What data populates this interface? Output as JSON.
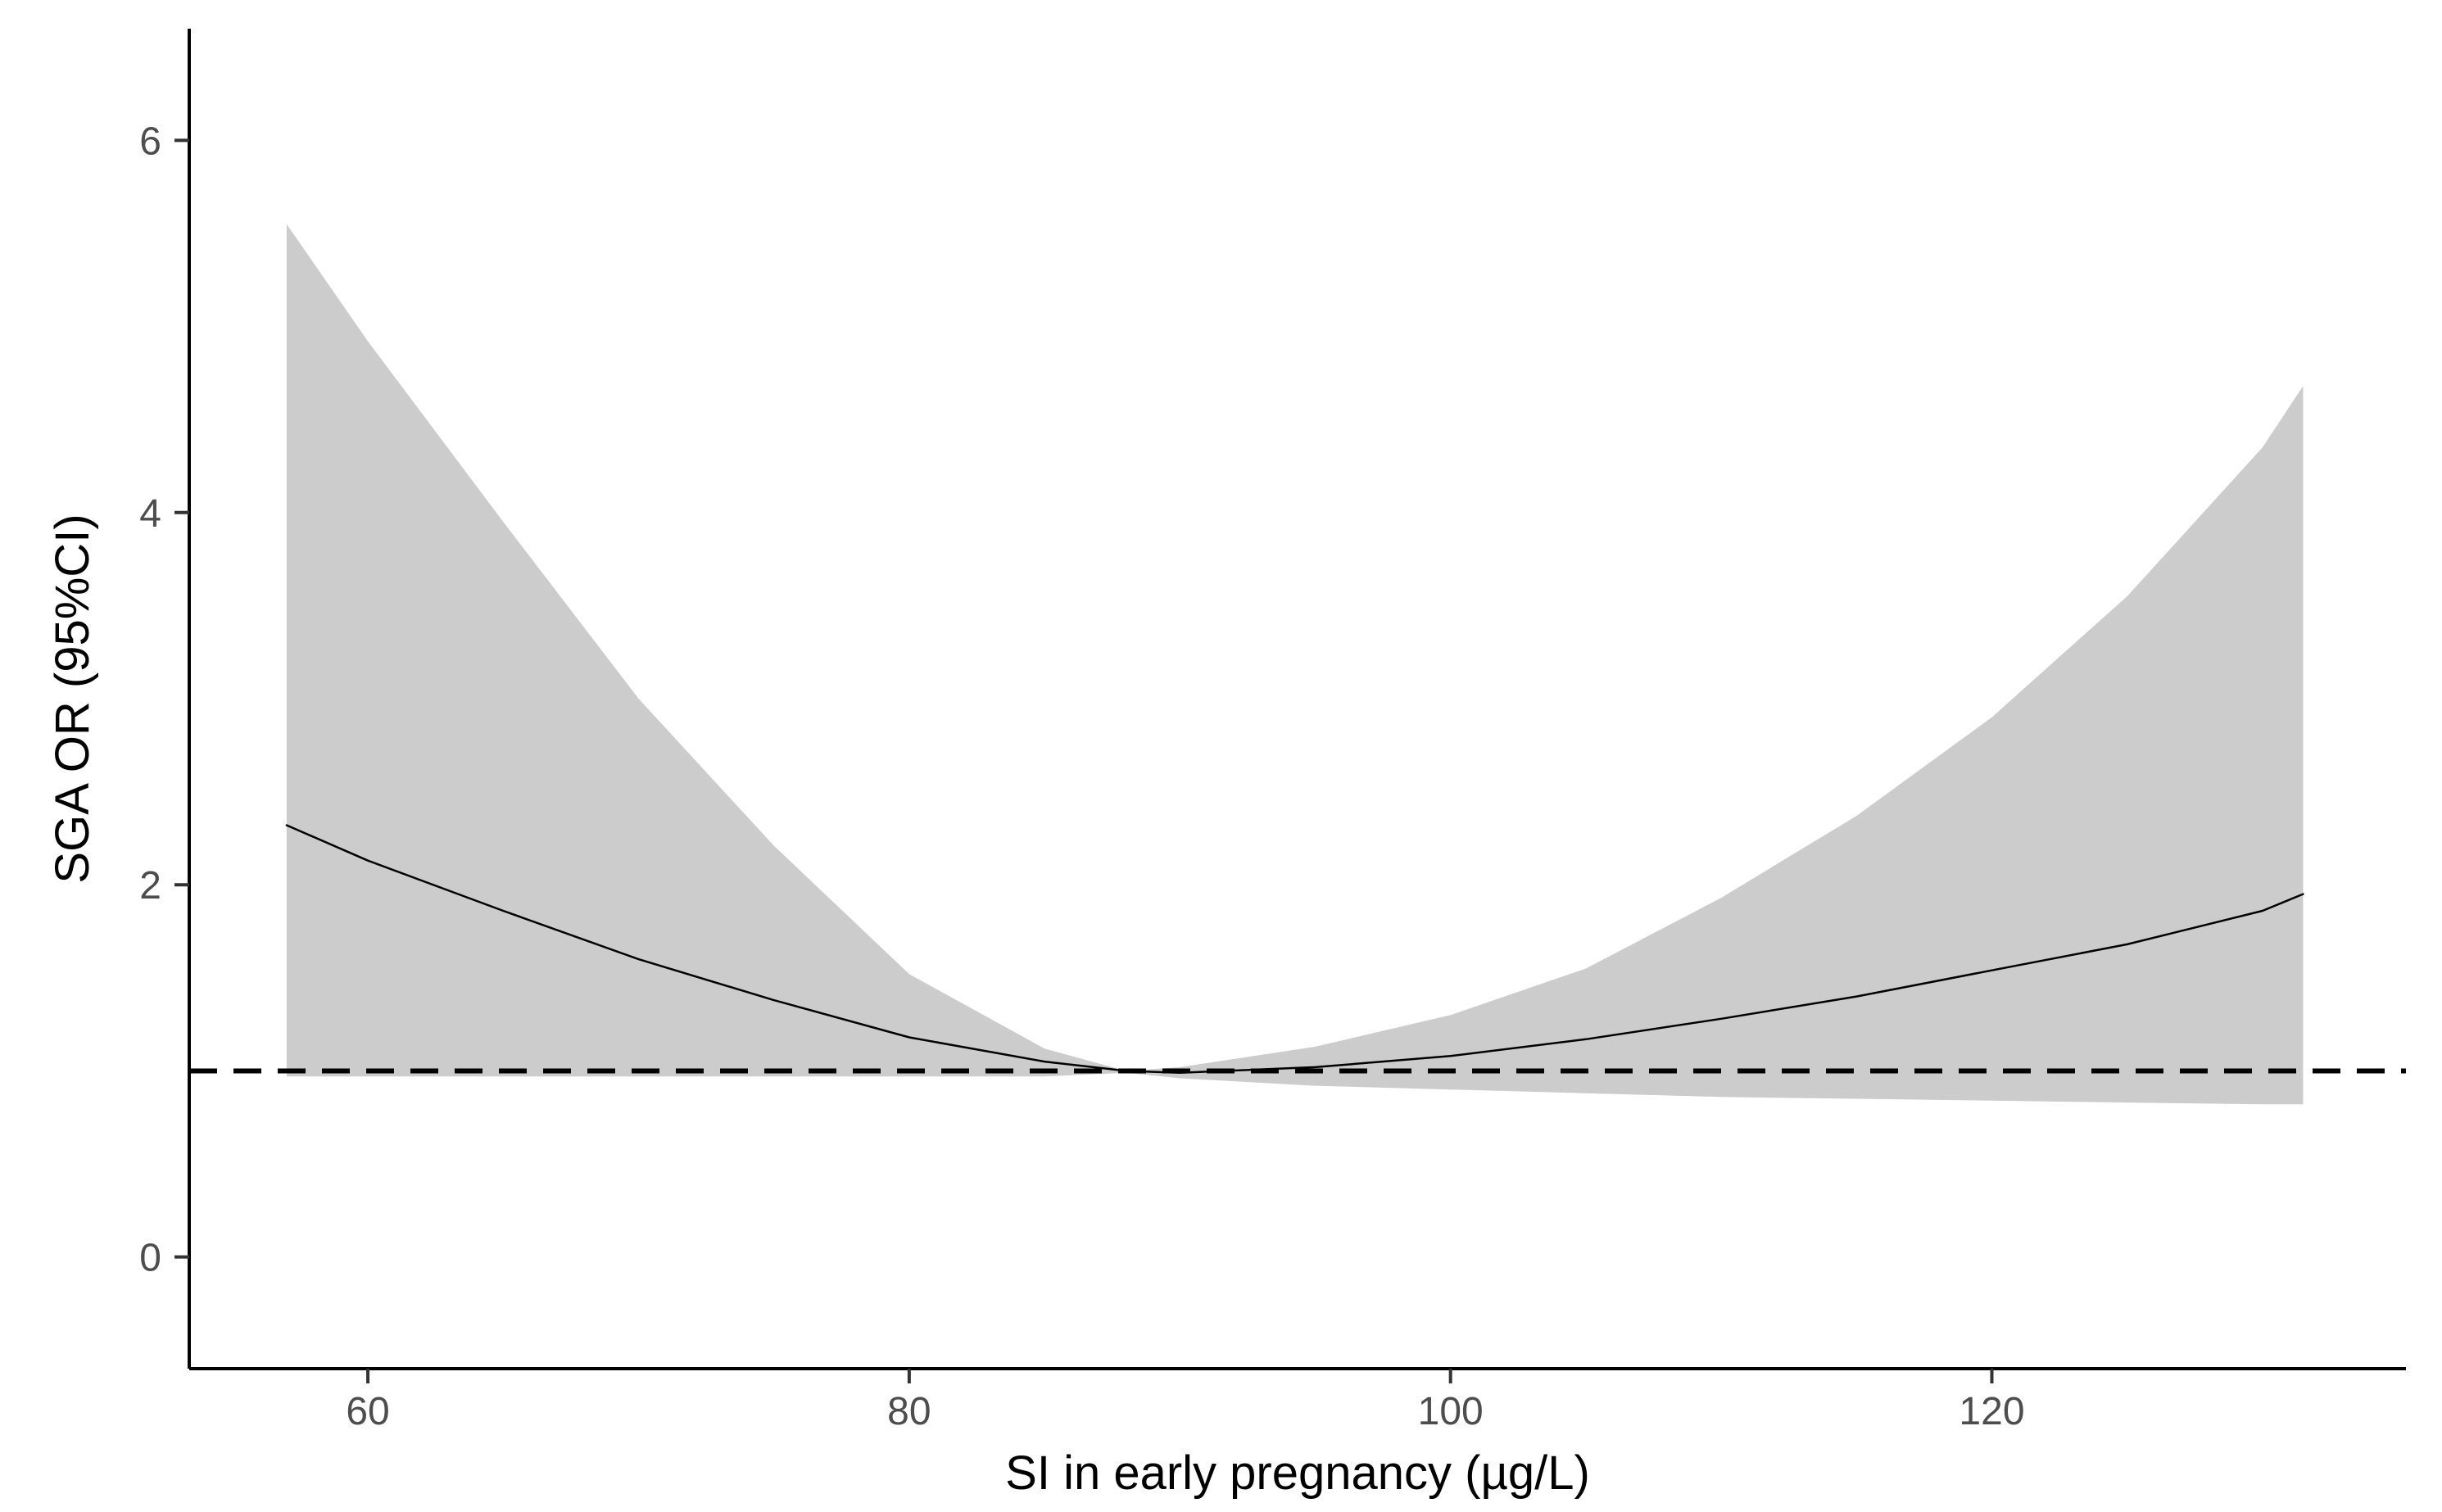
{
  "chart_data": {
    "type": "line",
    "title": "",
    "xlabel": "SI in early pregnancy (µg/L)",
    "ylabel": "SGA OR (95%CI)",
    "xlim": [
      53.4,
      135.3
    ],
    "ylim": [
      -0.6,
      6.6
    ],
    "xticks": [
      60,
      80,
      100,
      120
    ],
    "yticks": [
      0,
      2,
      4,
      6
    ],
    "grid": false,
    "reference_line": {
      "y": 1,
      "style": "dashed",
      "color": "#000000"
    },
    "series": [
      {
        "name": "OR",
        "color": "#000000",
        "x": [
          57,
          60,
          65,
          70,
          75,
          80,
          85,
          88,
          90,
          95,
          100,
          105,
          110,
          115,
          120,
          125,
          130,
          131.5
        ],
        "y": [
          2.32,
          2.13,
          1.86,
          1.6,
          1.38,
          1.18,
          1.05,
          1.0,
          0.99,
          1.02,
          1.08,
          1.17,
          1.28,
          1.4,
          1.54,
          1.68,
          1.86,
          1.95
        ]
      }
    ],
    "confidence_band": {
      "name": "95% CI",
      "color": "#cccccc",
      "x": [
        57,
        60,
        65,
        70,
        75,
        80,
        85,
        88,
        90,
        95,
        100,
        105,
        110,
        115,
        120,
        125,
        130,
        131.5
      ],
      "lower": [
        0.97,
        0.97,
        0.97,
        0.97,
        0.97,
        0.97,
        0.97,
        0.99,
        0.96,
        0.92,
        0.9,
        0.88,
        0.86,
        0.85,
        0.84,
        0.83,
        0.82,
        0.82
      ],
      "upper": [
        5.55,
        4.92,
        3.95,
        3.0,
        2.21,
        1.52,
        1.12,
        1.0,
        1.02,
        1.13,
        1.3,
        1.55,
        1.93,
        2.37,
        2.9,
        3.55,
        4.35,
        4.68
      ]
    }
  }
}
